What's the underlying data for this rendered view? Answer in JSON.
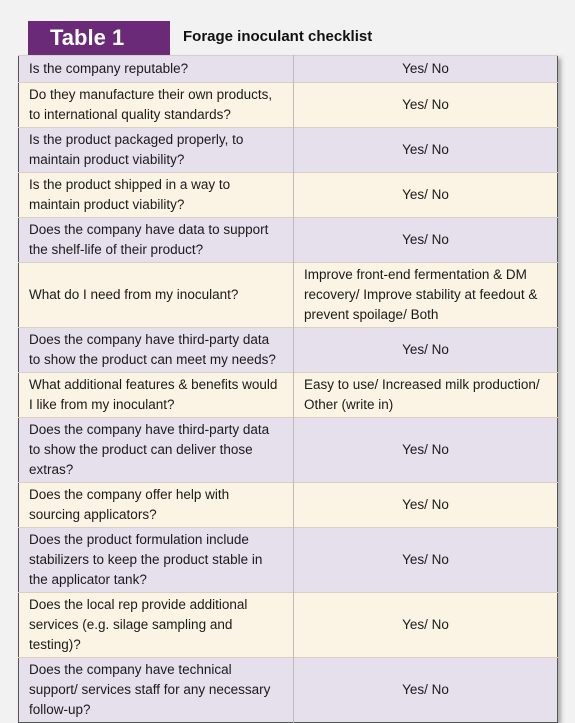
{
  "header": {
    "label": "Table 1",
    "title": "Forage inoculant checklist"
  },
  "table": {
    "rows": [
      [
        "Is the company reputable?",
        "Yes/ No"
      ],
      [
        "Do they manufacture their own products, to international quality standards?",
        "Yes/ No"
      ],
      [
        "Is the product packaged properly, to maintain product viability?",
        "Yes/ No"
      ],
      [
        "Is the product shipped in a way to maintain product viability?",
        "Yes/ No"
      ],
      [
        "Does the company have data to support the shelf-life of their product?",
        "Yes/ No"
      ],
      [
        "What do I need from my inoculant?",
        "Improve front-end fermentation & DM recovery/ Improve stability at feedout & prevent spoilage/ Both"
      ],
      [
        "Does the company have third-party data to show the product can meet my needs?",
        "Yes/ No"
      ],
      [
        "What additional features & benefits would I like from my inoculant?",
        "Easy to use/ Increased milk production/ Other (write in)"
      ],
      [
        "Does the company have third-party data to show the product can deliver those extras?",
        "Yes/ No"
      ],
      [
        "Does the company offer help with sourcing applicators?",
        "Yes/ No"
      ],
      [
        "Does the product formulation include stabilizers to keep the product stable in the applicator tank?",
        "Yes/ No"
      ],
      [
        "Does the local rep provide additional services (e.g. silage sampling and testing)?",
        "Yes/ No"
      ],
      [
        "Does the company have technical support/ services staff for any necessary follow-up?",
        "Yes/ No"
      ]
    ]
  }
}
